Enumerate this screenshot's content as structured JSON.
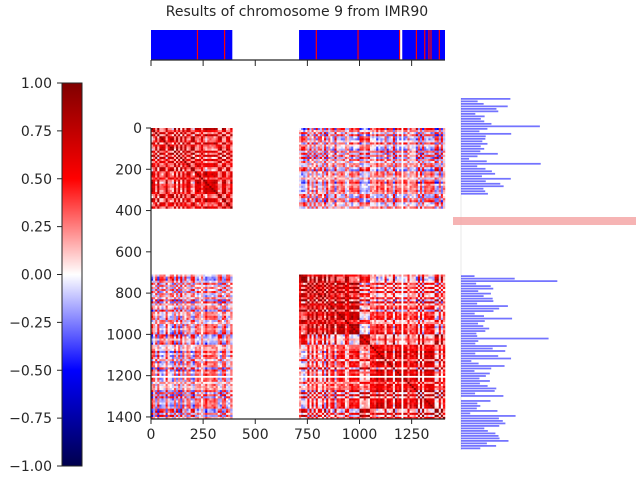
{
  "chart_data": {
    "type": "heatmap",
    "title": "Results of chromosome 9 from IMR90",
    "xlabel": "",
    "ylabel": "",
    "matrix": {
      "size": 1410,
      "xlim": [
        0,
        1410
      ],
      "ylim": [
        1410,
        0
      ],
      "x_ticks": [
        0,
        250,
        500,
        750,
        1000,
        1250
      ],
      "y_ticks": [
        0,
        200,
        400,
        600,
        800,
        1000,
        1200,
        1400
      ],
      "unmapped_gaps": [
        [
          390,
          710
        ],
        [
          1195,
          1205
        ]
      ],
      "compartment_blocks": [
        {
          "rows": [
            0,
            390
          ],
          "cols": [
            0,
            390
          ],
          "mean_value": 0.45
        },
        {
          "rows": [
            0,
            390
          ],
          "cols": [
            710,
            1410
          ],
          "mean_value": 0.1
        },
        {
          "rows": [
            710,
            1410
          ],
          "cols": [
            0,
            390
          ],
          "mean_value": 0.05
        },
        {
          "rows": [
            710,
            1000
          ],
          "cols": [
            710,
            1000
          ],
          "mean_value": 0.55
        },
        {
          "rows": [
            1000,
            1410
          ],
          "cols": [
            1000,
            1410
          ],
          "mean_value": 0.4
        },
        {
          "rows": [
            710,
            1000
          ],
          "cols": [
            1000,
            1410
          ],
          "mean_value": 0.25
        }
      ]
    },
    "colorbar": {
      "colormap": "seismic",
      "vmin": -1.0,
      "vmax": 1.0,
      "ticks": [
        "1.00",
        "0.75",
        "0.50",
        "0.25",
        "0.00",
        "−0.25",
        "−0.50",
        "−0.75",
        "−1.00"
      ]
    },
    "top_track": {
      "description_colors": {
        "positive": "#ff0000",
        "negative": "#0000ff"
      },
      "segments": [
        {
          "start": 0,
          "end": 390,
          "sign": "mixed"
        },
        {
          "start": 710,
          "end": 1410,
          "sign": "mixed"
        }
      ]
    },
    "right_track": {
      "color": "#0000ff",
      "highlight_row": 450,
      "highlight_color": "#f4a7a7"
    }
  },
  "colors": {
    "positive": "#ff0000",
    "negative": "#0000ff",
    "zero": "#ffffff",
    "axis": "#262626"
  }
}
